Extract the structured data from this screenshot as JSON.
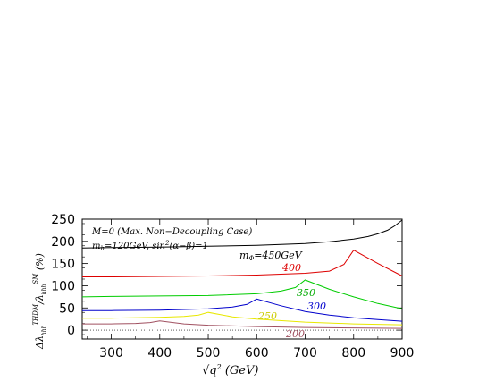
{
  "chart_data": {
    "type": "line",
    "xlim": [
      240,
      900
    ],
    "ylim": [
      -20,
      250
    ],
    "x_ticks": [
      300,
      400,
      500,
      600,
      700,
      800,
      900
    ],
    "y_ticks": [
      0,
      50,
      100,
      150,
      200,
      250
    ],
    "xlabel_parts": {
      "root": "√q",
      "sup": "2",
      "unit": " (GeV)"
    },
    "ylabel_parts": {
      "delta": "Δλ",
      "sub1": "hhh",
      "sup1": "THDM",
      "slash": "/λ",
      "sub2": "hhh",
      "sup2": "SM",
      "unit": " (%)"
    },
    "annotations": [
      "M=0 (Max. Non−Decoupling Case)",
      "m",
      "h",
      "=120GeV, sin",
      "2",
      "(α−β)=1"
    ],
    "series": [
      {
        "name": "mΦ=450GeV",
        "label_parts": [
          "m",
          "Φ",
          "=450GeV"
        ],
        "color": "#000000",
        "x": [
          240,
          300,
          400,
          500,
          600,
          700,
          750,
          800,
          830,
          850,
          870,
          885,
          900
        ],
        "y": [
          185,
          186,
          187,
          189,
          191,
          195,
          199,
          205,
          211,
          217,
          225,
          235,
          248
        ]
      },
      {
        "name": "400",
        "label_parts": [
          "400"
        ],
        "color": "#dd0000",
        "x": [
          240,
          300,
          400,
          500,
          600,
          700,
          750,
          780,
          800,
          850,
          900
        ],
        "y": [
          120,
          120,
          121,
          122,
          124,
          128,
          133,
          148,
          180,
          150,
          122
        ]
      },
      {
        "name": "350",
        "label_parts": [
          "350"
        ],
        "color": "#00cc00",
        "x": [
          240,
          300,
          400,
          500,
          600,
          650,
          680,
          700,
          750,
          800,
          850,
          900
        ],
        "y": [
          75,
          76,
          77,
          78,
          82,
          88,
          96,
          113,
          92,
          75,
          60,
          48
        ]
      },
      {
        "name": "300",
        "label_parts": [
          "300"
        ],
        "color": "#0000cc",
        "x": [
          240,
          300,
          400,
          500,
          550,
          580,
          600,
          650,
          700,
          750,
          800,
          850,
          900
        ],
        "y": [
          44,
          44,
          45,
          48,
          52,
          58,
          70,
          55,
          42,
          34,
          28,
          24,
          20
        ]
      },
      {
        "name": "250",
        "label_parts": [
          "250"
        ],
        "color": "#e8e800",
        "x": [
          240,
          300,
          400,
          450,
          480,
          500,
          550,
          600,
          700,
          800,
          900
        ],
        "y": [
          27,
          27,
          29,
          31,
          34,
          40,
          30,
          25,
          18,
          14,
          12
        ]
      },
      {
        "name": "200",
        "label_parts": [
          "200"
        ],
        "color": "#a05060",
        "x": [
          240,
          300,
          350,
          380,
          400,
          450,
          500,
          600,
          700,
          800,
          900
        ],
        "y": [
          14,
          14,
          15,
          17,
          21,
          14,
          11,
          8,
          6,
          5,
          4
        ]
      }
    ]
  }
}
